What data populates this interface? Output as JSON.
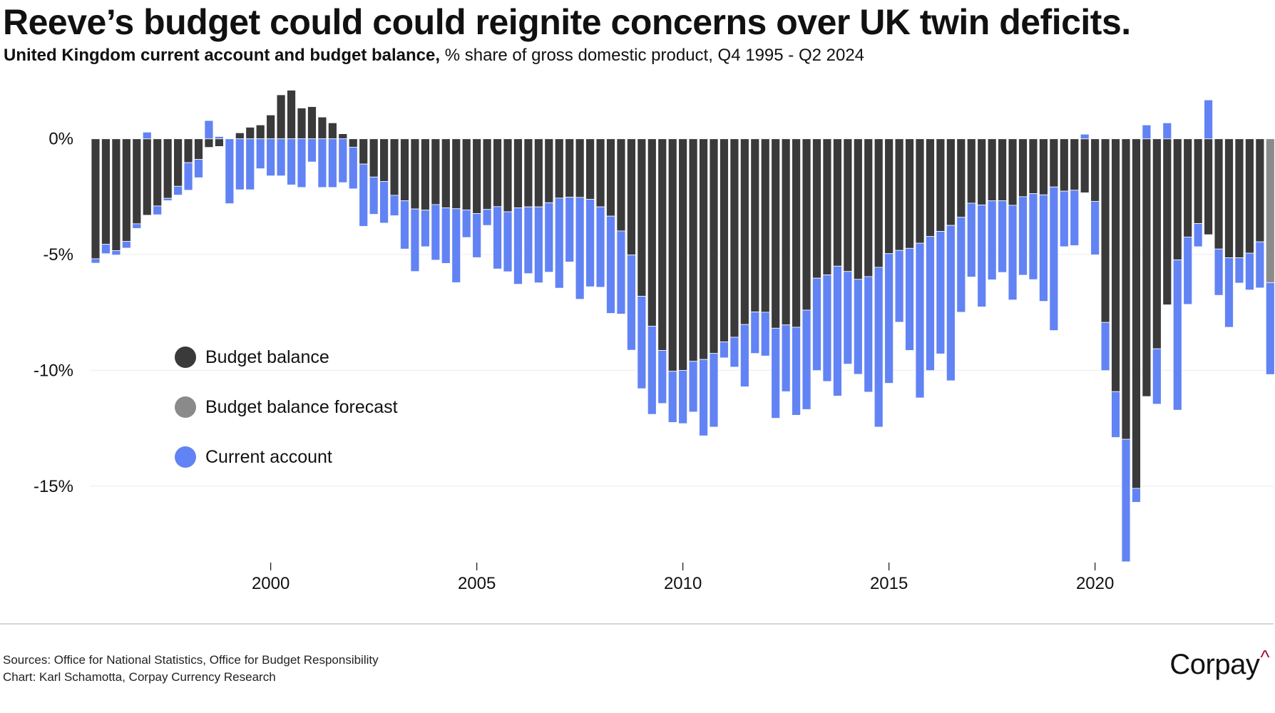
{
  "header": {
    "title": "Reeve’s budget could could reignite concerns over UK twin deficits.",
    "subtitle_bold": "United Kingdom current account and budget balance,",
    "subtitle_rest": " % share of gross domestic product, Q4 1995 - Q2 2024"
  },
  "legend": [
    {
      "label": "Budget balance",
      "color": "#3a3a3a"
    },
    {
      "label": "Budget balance forecast",
      "color": "#8a8a8a"
    },
    {
      "label": "Current account",
      "color": "#6283f4"
    }
  ],
  "footer": {
    "sources": "Sources: Office for National Statistics, Office for Budget Responsibility",
    "credit": "Chart: Karl Schamotta, Corpay Currency Research",
    "logo_text": "Corpay",
    "logo_caret": "^",
    "logo_caret_color": "#a3123f"
  },
  "chart_data": {
    "type": "bar",
    "stacked": true,
    "title": "Reeve’s budget could could reignite concerns over UK twin deficits.",
    "subtitle": "United Kingdom current account and budget balance, % share of gross domestic product, Q4 1995 - Q2 2024",
    "xlabel": "",
    "ylabel": "",
    "period_start": "Q4 1995",
    "period_end": "Q2 2024",
    "frequency": "quarterly",
    "x_ticks": [
      {
        "label": "2000",
        "index": 17
      },
      {
        "label": "2005",
        "index": 37
      },
      {
        "label": "2010",
        "index": 57
      },
      {
        "label": "2015",
        "index": 77
      },
      {
        "label": "2020",
        "index": 97
      }
    ],
    "y_ticks": [
      {
        "label": "0%",
        "value": 0
      },
      {
        "label": "-5%",
        "value": -5
      },
      {
        "label": "-10%",
        "value": -10
      },
      {
        "label": "-15%",
        "value": -15
      }
    ],
    "ylim": [
      -18.5,
      2.8
    ],
    "grid": true,
    "legend_position": "center-left",
    "forecast_from_index": 114,
    "series": [
      {
        "name": "Budget balance",
        "color": "#3a3a3a",
        "forecast_color": "#8a8a8a",
        "values": [
          -5.18,
          -4.55,
          -4.83,
          -4.43,
          -3.67,
          -3.3,
          -2.9,
          -2.57,
          -2.05,
          -1.03,
          -0.89,
          -0.37,
          -0.33,
          0.0,
          0.26,
          0.5,
          0.6,
          1.03,
          1.9,
          2.1,
          1.33,
          1.39,
          0.94,
          0.69,
          0.22,
          -0.36,
          -1.09,
          -1.65,
          -1.84,
          -2.44,
          -2.67,
          -3.03,
          -3.08,
          -2.84,
          -2.98,
          -3.02,
          -3.07,
          -3.23,
          -3.05,
          -2.93,
          -3.15,
          -2.98,
          -2.94,
          -2.94,
          -2.76,
          -2.56,
          -2.52,
          -2.53,
          -2.61,
          -2.94,
          -3.34,
          -3.98,
          -5.02,
          -6.8,
          -8.09,
          -9.14,
          -10.04,
          -10.0,
          -9.61,
          -9.53,
          -9.27,
          -8.77,
          -8.57,
          -8.02,
          -7.48,
          -7.49,
          -8.18,
          -8.04,
          -8.14,
          -7.4,
          -6.02,
          -5.88,
          -5.5,
          -5.73,
          -6.07,
          -5.95,
          -5.55,
          -4.96,
          -4.82,
          -4.73,
          -4.51,
          -4.22,
          -4.0,
          -3.74,
          -3.39,
          -2.78,
          -2.86,
          -2.68,
          -2.67,
          -2.87,
          -2.5,
          -2.37,
          -2.42,
          -2.08,
          -2.26,
          -2.22,
          -2.33,
          -2.7,
          -7.93,
          -10.92,
          -12.98,
          -15.1,
          -11.13,
          -9.07,
          -7.17,
          -5.23,
          -4.24,
          -3.66,
          -4.14,
          -4.76,
          -5.14,
          -5.14,
          -4.94,
          -4.45,
          -6.21
        ]
      },
      {
        "name": "Current account",
        "color": "#6283f4",
        "values": [
          -0.19,
          -0.41,
          -0.19,
          -0.29,
          -0.2,
          0.29,
          -0.38,
          -0.1,
          -0.38,
          -1.19,
          -0.79,
          0.79,
          0.1,
          -2.8,
          -2.2,
          -2.2,
          -1.29,
          -1.6,
          -1.6,
          -1.99,
          -2.1,
          -1.0,
          -2.1,
          -2.1,
          -1.89,
          -1.8,
          -2.69,
          -1.61,
          -1.8,
          -0.88,
          -2.09,
          -2.7,
          -1.58,
          -2.4,
          -2.4,
          -3.19,
          -1.19,
          -1.9,
          -0.69,
          -2.69,
          -2.59,
          -3.3,
          -2.88,
          -3.28,
          -3.0,
          -3.89,
          -2.8,
          -4.4,
          -3.78,
          -3.47,
          -4.2,
          -3.59,
          -4.11,
          -3.99,
          -3.81,
          -2.29,
          -2.21,
          -2.3,
          -2.19,
          -3.3,
          -3.18,
          -0.69,
          -1.29,
          -2.69,
          -1.79,
          -1.89,
          -3.89,
          -2.88,
          -3.8,
          -4.29,
          -3.99,
          -4.6,
          -5.61,
          -4.0,
          -4.1,
          -4.99,
          -6.9,
          -5.6,
          -3.1,
          -4.41,
          -6.68,
          -5.79,
          -5.29,
          -6.71,
          -4.1,
          -3.19,
          -4.4,
          -3.41,
          -3.1,
          -4.09,
          -3.39,
          -3.71,
          -4.6,
          -6.2,
          -2.4,
          -2.39,
          0.2,
          -2.31,
          -2.08,
          -1.98,
          -5.29,
          -0.6,
          0.6,
          -2.39,
          0.69,
          -6.49,
          -2.91,
          -1.0,
          1.68,
          -2.0,
          -3.0,
          -1.09,
          -1.59,
          -1.99,
          -3.97
        ]
      }
    ]
  }
}
